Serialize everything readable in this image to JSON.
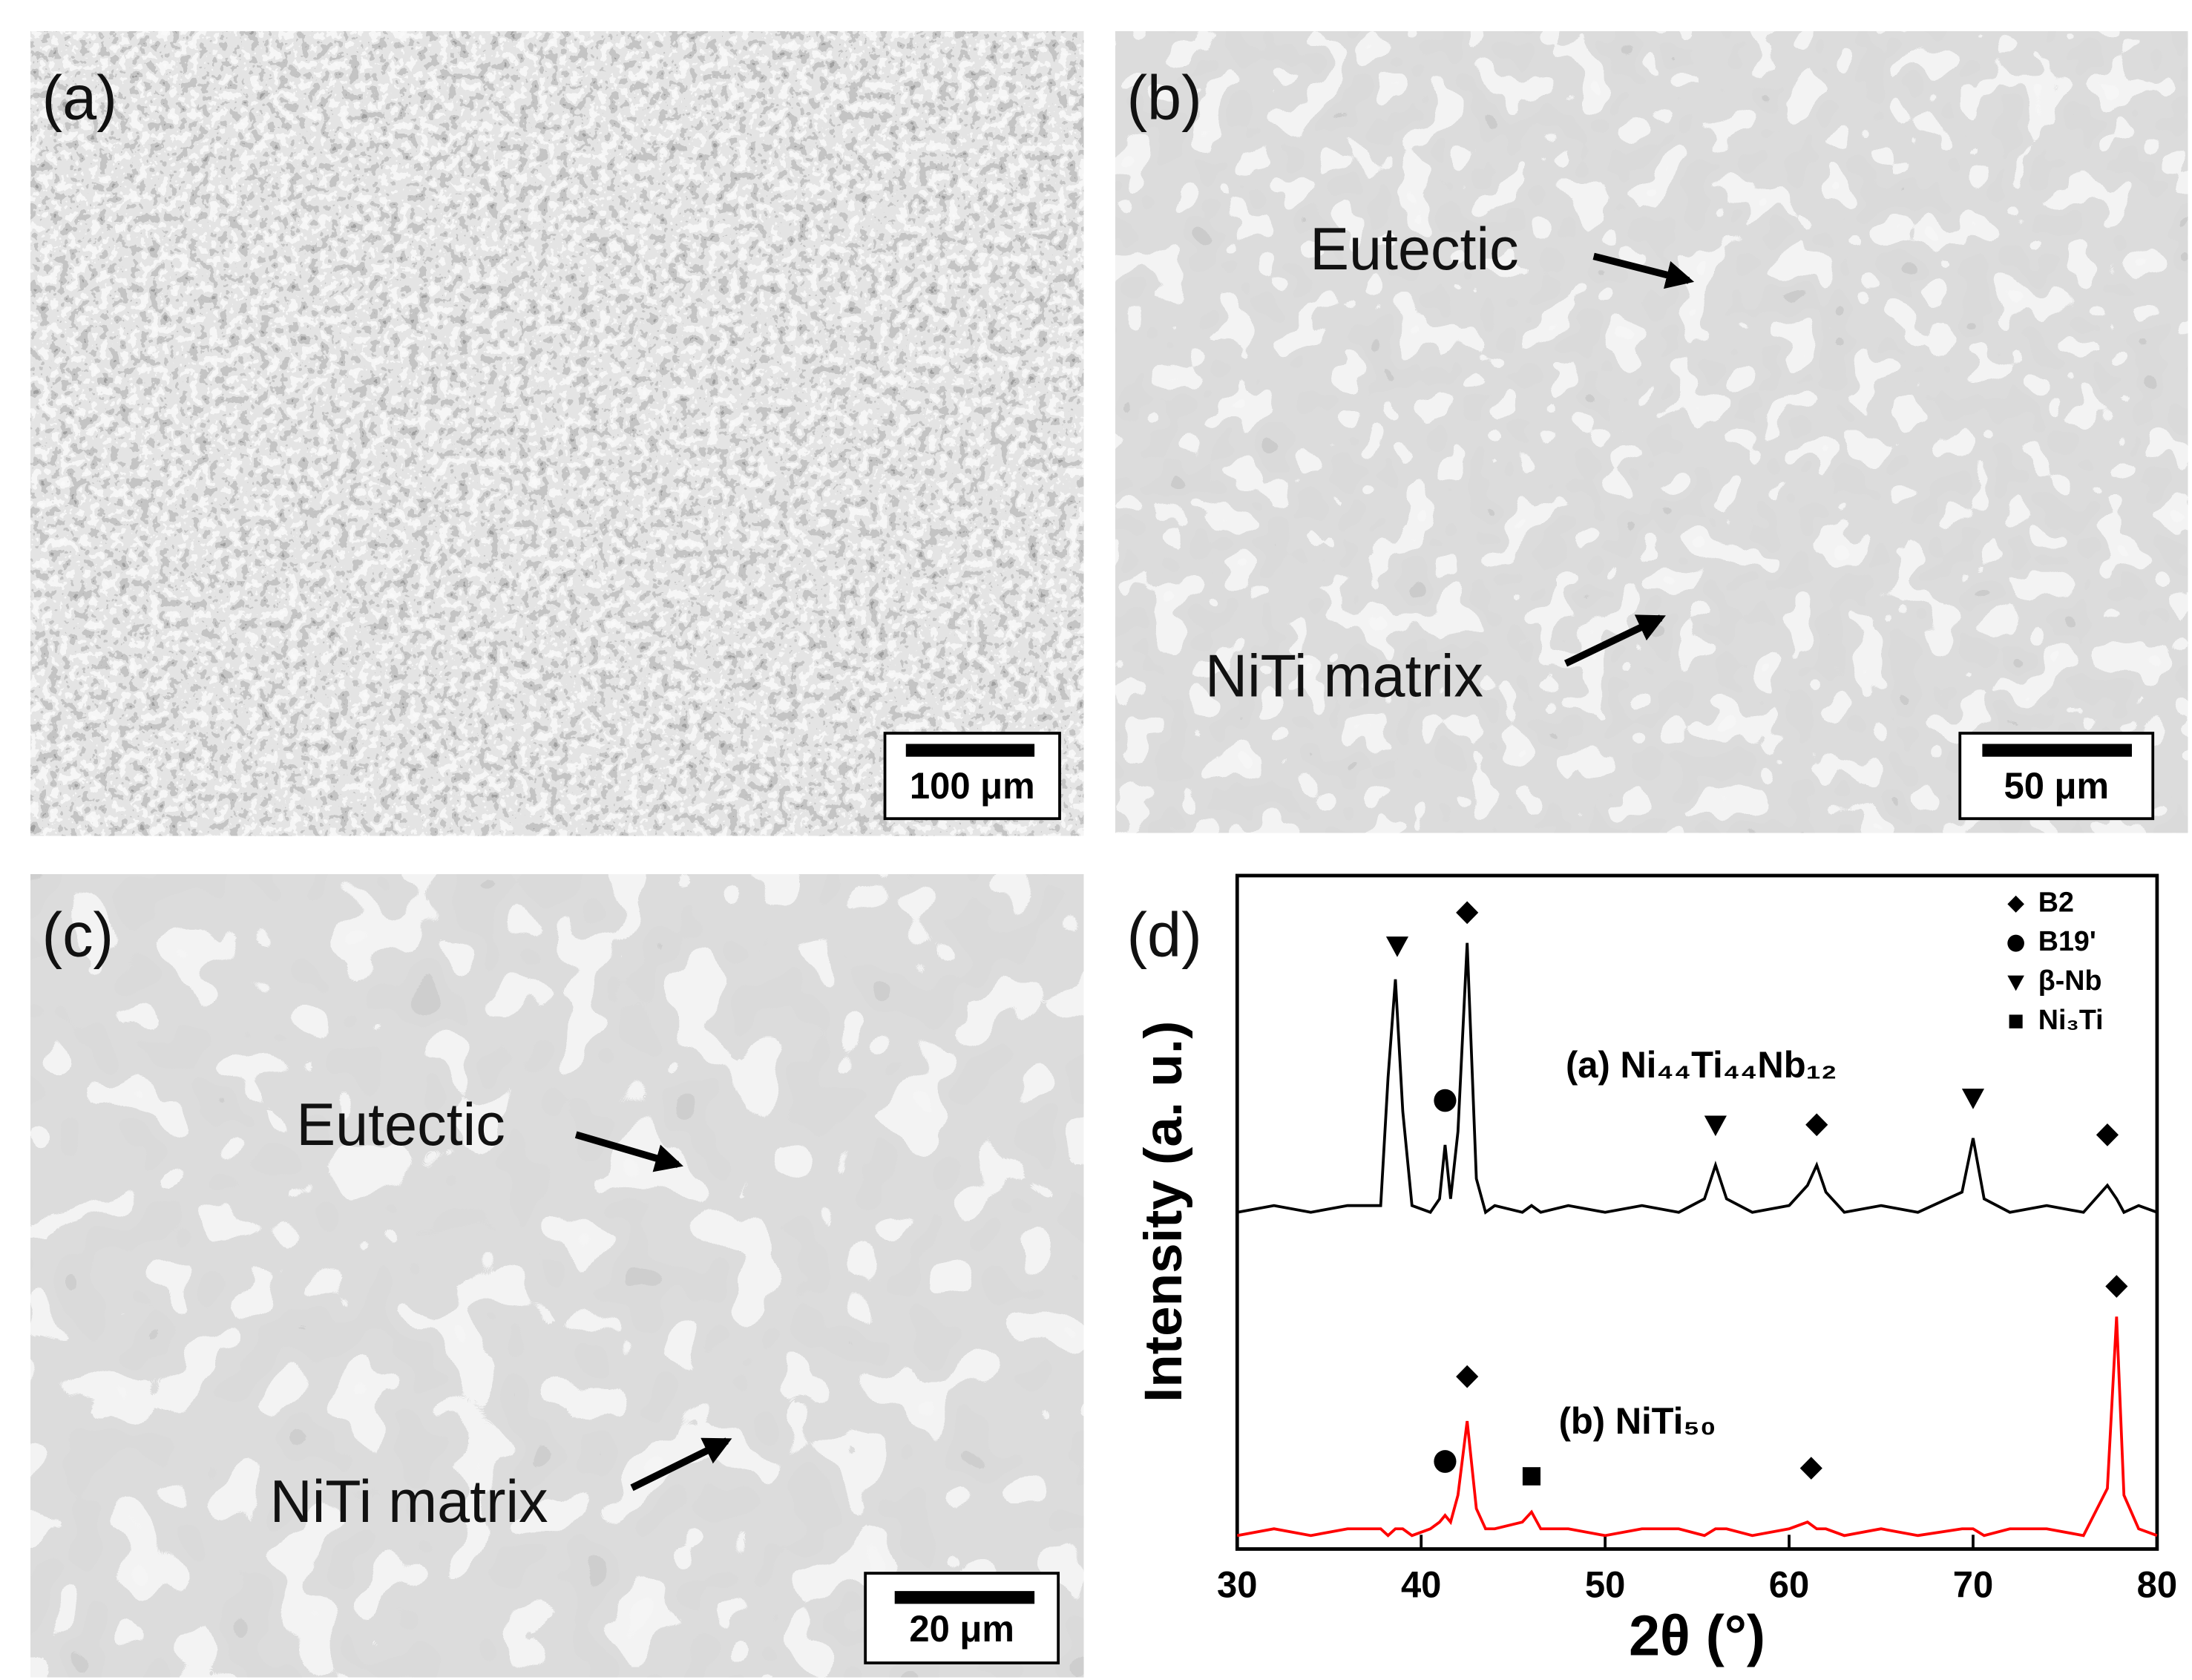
{
  "panels": [
    {
      "label": "(a)",
      "scale_bar": "100 μm"
    },
    {
      "label": "(b)",
      "scale_bar": "50 μm",
      "annotations": [
        "Eutectic",
        "NiTi matrix"
      ]
    },
    {
      "label": "(c)",
      "scale_bar": "20 μm",
      "annotations": [
        "Eutectic",
        "NiTi matrix"
      ]
    },
    {
      "label": "(d)"
    }
  ],
  "chart_data": {
    "type": "line",
    "xlabel": "2θ (°)",
    "ylabel": "Intensity (a. u.)",
    "xlim": [
      30,
      80
    ],
    "xticks": [
      30,
      40,
      50,
      60,
      70,
      80
    ],
    "ylim": [
      0,
      100
    ],
    "x": [
      30,
      32,
      34,
      36,
      37.8,
      38.2,
      38.6,
      39.0,
      39.5,
      40.5,
      41.0,
      41.3,
      41.6,
      42.0,
      42.5,
      43.0,
      43.5,
      44,
      45.5,
      46,
      46.5,
      48,
      50,
      52,
      54,
      55.4,
      56,
      56.6,
      58,
      60,
      61,
      61.5,
      62,
      63,
      65,
      67,
      69.4,
      70,
      70.6,
      72,
      74,
      76,
      77.3,
      77.8,
      78.2,
      79,
      80
    ],
    "series": [
      {
        "name": "(a) Ni₄₄Ti₄₄Nb₁₂",
        "color": "#000000",
        "values": [
          50,
          51,
          50,
          51,
          51,
          70,
          84.6,
          65,
          51,
          50,
          52,
          60,
          52,
          62,
          90,
          55,
          50,
          51,
          50,
          51,
          50,
          51,
          50,
          51,
          50,
          52,
          57,
          52,
          50,
          51,
          54,
          57,
          53,
          50,
          51,
          50,
          53,
          61,
          52,
          50,
          51,
          50,
          54,
          52,
          50,
          51,
          50
        ]
      },
      {
        "name": "(b) NiTi₅₀",
        "color": "#ff0000",
        "values": [
          2,
          3,
          2,
          3,
          3,
          2,
          3,
          3,
          2,
          3,
          4,
          5,
          4,
          8,
          19,
          6,
          3,
          3,
          4,
          5.5,
          3,
          3,
          2,
          3,
          3,
          2,
          3,
          3,
          2,
          3,
          4,
          3,
          3,
          2,
          3,
          2,
          3,
          3,
          2,
          3,
          3,
          2,
          9,
          34.5,
          8,
          3,
          2
        ]
      }
    ],
    "phases": [
      {
        "label": "B2",
        "x": [
          42.5,
          61.5,
          77.3,
          42.5,
          61.2,
          77.8
        ],
        "y": [
          94.5,
          63,
          61.5,
          25.6,
          12,
          39
        ]
      },
      {
        "label": "B19'",
        "x": [
          41.3,
          41.3
        ],
        "y": [
          66.6,
          13
        ]
      },
      {
        "label": "β-Nb",
        "x": [
          38.7,
          56,
          70
        ],
        "y": [
          89.6,
          63,
          67
        ]
      },
      {
        "label": "Ni₃Ti",
        "x": [
          46
        ],
        "y": [
          10.8
        ]
      }
    ]
  }
}
